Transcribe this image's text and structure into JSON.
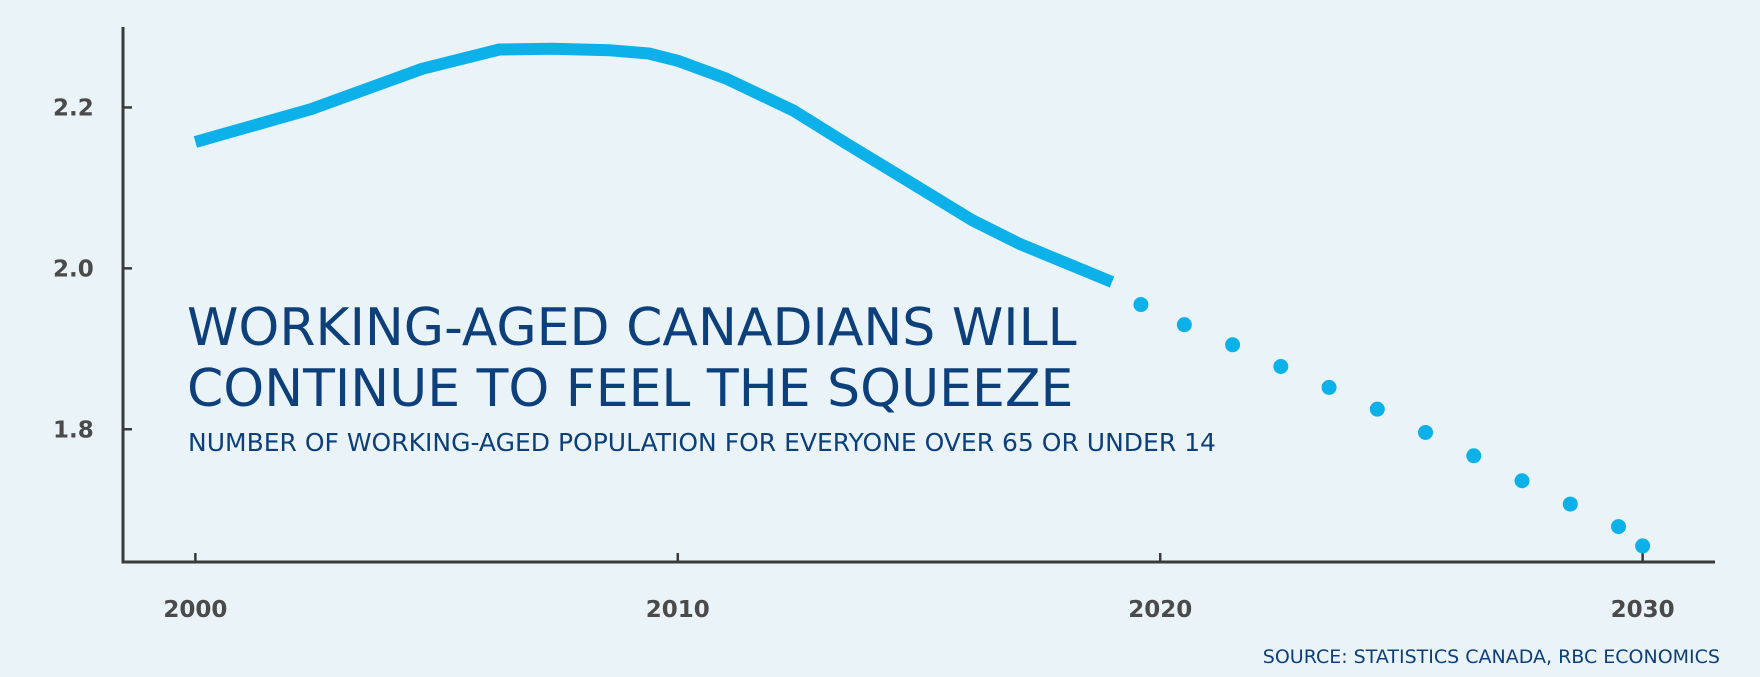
{
  "chart_data": {
    "type": "line",
    "title": "WORKING-AGED CANADIANS WILL CONTINUE TO FEEL THE SQUEEZE",
    "subtitle": "NUMBER OF WORKING-AGED POPULATION FOR EVERYONE OVER 65 OR UNDER 14",
    "source": "SOURCE: STATISTICS CANADA, RBC ECONOMICS",
    "xlabel": "",
    "ylabel": "",
    "xlim": [
      1998.5,
      2031.5
    ],
    "ylim": [
      1.635,
      2.3
    ],
    "xticks": [
      2000,
      2010,
      2020,
      2030
    ],
    "xtick_labels": [
      "2000",
      "2010",
      "2020",
      "2030"
    ],
    "yticks": [
      1.8,
      2.0,
      2.2
    ],
    "ytick_labels": [
      "1.8",
      "2.0",
      "2.2"
    ],
    "grid": false,
    "legend": "none",
    "colors": {
      "line": "#0db1ea",
      "axis": "#3a3a3a",
      "text": "#0d3f7a",
      "background": "#eaf4f8"
    },
    "series": [
      {
        "style": "solid",
        "x": [
          2000,
          2002.4,
          2004.7,
          2006.3,
          2007.4,
          2008.6,
          2009.4,
          2010,
          2011,
          2012.4,
          2013.5,
          2014.9,
          2016.1,
          2017.1,
          2019
        ],
        "y": [
          2.157,
          2.198,
          2.248,
          2.272,
          2.273,
          2.271,
          2.267,
          2.258,
          2.236,
          2.196,
          2.155,
          2.104,
          2.06,
          2.03,
          1.983
        ]
      },
      {
        "style": "dotted",
        "x": [
          2019.6,
          2020.5,
          2021.5,
          2022.5,
          2023.5,
          2024.5,
          2025.5,
          2026.5,
          2027.5,
          2028.5,
          2029.5,
          2030
        ],
        "y": [
          1.955,
          1.93,
          1.905,
          1.878,
          1.852,
          1.825,
          1.796,
          1.767,
          1.736,
          1.707,
          1.679,
          1.655
        ]
      }
    ]
  }
}
